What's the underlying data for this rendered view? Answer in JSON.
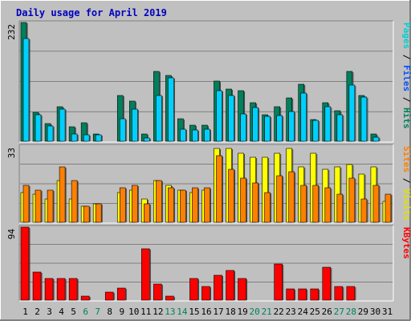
{
  "title": "Daily usage for April 2019",
  "colors": {
    "background": "#C0C0C0",
    "border_light": "#FFFFFF",
    "border_dark": "#808080",
    "title": "#0000FF",
    "hits": "#00805C",
    "files": "#00C0FF",
    "pages": "#00D0D0",
    "visits": "#FFFF00",
    "sites": "#FF8000",
    "kbytes": "#FF0000",
    "weekday_label": "#000000",
    "weekend_label": "#00805C"
  },
  "chart_data": {
    "type": "bar",
    "days": [
      "1",
      "2",
      "3",
      "4",
      "5",
      "6",
      "7",
      "8",
      "9",
      "10",
      "11",
      "12",
      "13",
      "14",
      "15",
      "16",
      "17",
      "18",
      "19",
      "20",
      "21",
      "22",
      "23",
      "24",
      "25",
      "26",
      "27",
      "28",
      "29",
      "30",
      "31"
    ],
    "weekend_days": [
      "6",
      "7",
      "13",
      "14",
      "20",
      "21",
      "27",
      "28"
    ],
    "panels": [
      {
        "id": "hits_files",
        "scale_max_label": "232",
        "ymax": 232,
        "axis_label_parts": [
          {
            "text": "Pages",
            "color": "#00D0D0"
          },
          {
            "text": " / ",
            "color": "#000000"
          },
          {
            "text": "Files",
            "color": "#0050FF"
          },
          {
            "text": " / ",
            "color": "#000000"
          },
          {
            "text": "Hits",
            "color": "#00805C"
          }
        ],
        "series": [
          {
            "name": "Hits",
            "color": "#00805C",
            "values": [
              232,
              56,
              34,
              68,
              28,
              36,
              14,
              0,
              90,
              78,
              14,
              136,
              128,
              44,
              32,
              32,
              118,
              102,
              98,
              76,
              52,
              68,
              84,
              112,
              42,
              76,
              60,
              136,
              90,
              14,
              0
            ]
          },
          {
            "name": "Files",
            "color": "#00D0FF",
            "values": [
              200,
              52,
              30,
              62,
              14,
              12,
              12,
              0,
              44,
              62,
              6,
              90,
              124,
              24,
              22,
              24,
              98,
              90,
              54,
              66,
              48,
              50,
              58,
              94,
              40,
              68,
              52,
              110,
              86,
              8,
              0
            ]
          }
        ]
      },
      {
        "id": "visits_sites",
        "scale_max_label": "33",
        "ymax": 33,
        "axis_label_parts": [
          {
            "text": "Sites",
            "color": "#FF8000"
          },
          {
            "text": " / ",
            "color": "#000000"
          },
          {
            "text": "Visits",
            "color": "#E0E000"
          }
        ],
        "series": [
          {
            "name": "Visits",
            "color": "#FFFF00",
            "values": [
              13,
              12,
              10,
              18,
              10,
              7,
              8,
              0,
              13,
              14,
              10,
              18,
              16,
              14,
              13,
              14,
              32,
              32,
              30,
              28,
              28,
              30,
              32,
              24,
              30,
              23,
              24,
              25,
              21,
              24,
              9
            ]
          },
          {
            "name": "Sites",
            "color": "#FF8000",
            "values": [
              16,
              14,
              14,
              24,
              18,
              7,
              8,
              0,
              15,
              16,
              8,
              18,
              15,
              14,
              15,
              15,
              29,
              23,
              19,
              17,
              13,
              20,
              22,
              16,
              16,
              15,
              12,
              19,
              10,
              16,
              12
            ]
          }
        ]
      },
      {
        "id": "kbytes",
        "scale_max_label": "94",
        "ymax": 94,
        "axis_label_parts": [
          {
            "text": "KBytes",
            "color": "#FF0000"
          }
        ],
        "series": [
          {
            "name": "KBytes",
            "color": "#FF0000",
            "values": [
              94,
              36,
              28,
              28,
              28,
              5,
              0,
              10,
              16,
              0,
              66,
              21,
              5,
              0,
              28,
              18,
              32,
              38,
              28,
              0,
              0,
              46,
              14,
              14,
              14,
              42,
              18,
              18,
              0,
              0,
              0
            ]
          }
        ]
      }
    ]
  }
}
